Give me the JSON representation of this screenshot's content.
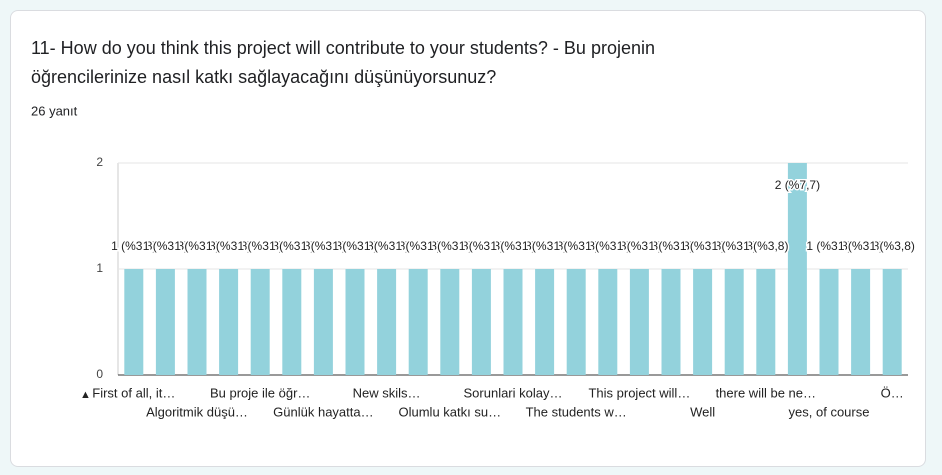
{
  "header": {
    "title_line1": "11- How do you think this project will contribute to your students? - Bu projenin",
    "title_line2": "öğrencilerinize nasıl katkı sağlayacağını düşünüyorsunuz?",
    "responses": "26 yanıt"
  },
  "axis_nav": "▲",
  "chart_data": {
    "type": "bar",
    "color": "#93d2dc",
    "categories": [
      "First of all, it…",
      null,
      "Algoritmik düşü…",
      null,
      "Bu proje ile öğr…",
      null,
      "Günlük hayatta…",
      null,
      "New skils…",
      null,
      "Olumlu katkı su…",
      null,
      "Sorunlari kolay…",
      null,
      "The students w…",
      null,
      "This project will…",
      null,
      "Well",
      null,
      "there will be ne…",
      null,
      "yes, of course",
      null,
      "Ö…"
    ],
    "values": [
      1,
      1,
      1,
      1,
      1,
      1,
      1,
      1,
      1,
      1,
      1,
      1,
      1,
      1,
      1,
      1,
      1,
      1,
      1,
      1,
      1,
      2,
      1,
      1,
      1
    ],
    "value_labels": [
      "1 (%3,8)",
      "1 (%3,8)",
      "1 (%3,8)",
      "1 (%3,8)",
      "1 (%3,8)",
      "1 (%3,8)",
      "1 (%3,8)",
      "1 (%3,8)",
      "1 (%3,8)",
      "1 (%3,8)",
      "1 (%3,8)",
      "1 (%3,8)",
      "1 (%3,8)",
      "1 (%3,8)",
      "1 (%3,8)",
      "1 (%3,8)",
      "1 (%3,8)",
      "1 (%3,8)",
      "1 (%3,8)",
      "1 (%3,8)",
      "1 (%3,8)",
      "2 (%7,7)",
      "1 (%3,8)",
      "1 (%3,8)",
      "1 (%3,8)"
    ],
    "ylim": [
      0,
      2
    ],
    "yticks": [
      0,
      1,
      2
    ],
    "grid": true
  }
}
